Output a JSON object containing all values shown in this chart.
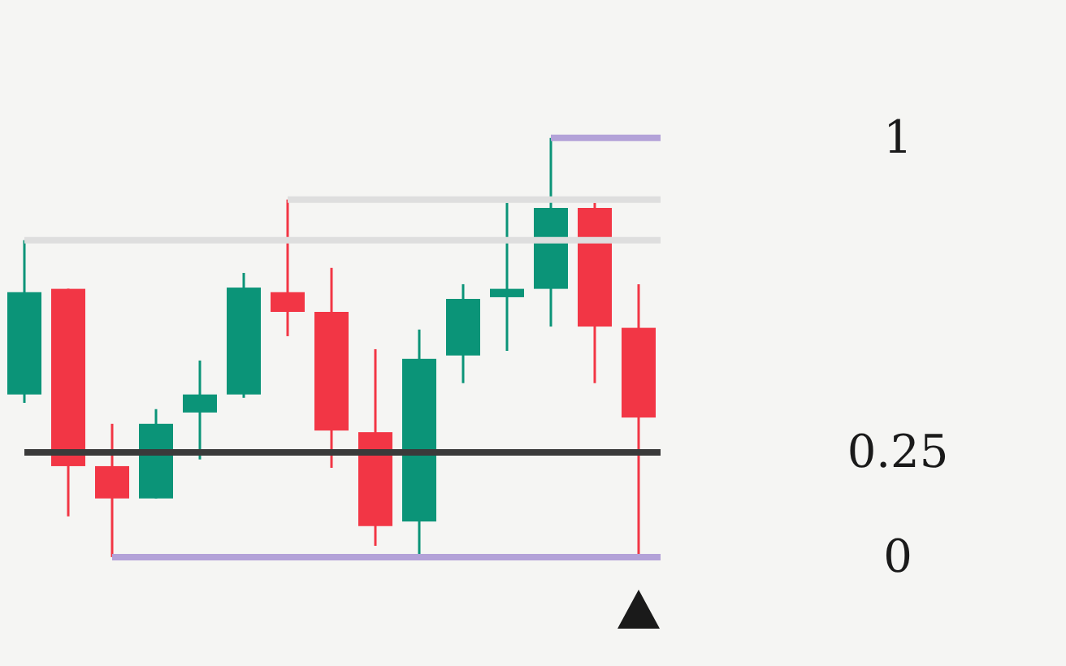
{
  "chart_data": {
    "type": "candlestick",
    "categories": [
      null,
      null,
      null,
      null,
      null,
      null,
      null,
      null,
      null,
      null,
      null,
      null,
      null,
      null,
      null
    ],
    "ohlc": [
      [
        0.388,
        0.756,
        0.368,
        0.632
      ],
      [
        0.64,
        0.64,
        0.097,
        0.217
      ],
      [
        0.217,
        0.318,
        0,
        0.14
      ],
      [
        0.14,
        0.353,
        0.14,
        0.318
      ],
      [
        0.345,
        0.469,
        0.233,
        0.388
      ],
      [
        0.388,
        0.678,
        0.38,
        0.643
      ],
      [
        0.632,
        0.853,
        0.527,
        0.585
      ],
      [
        0.585,
        0.69,
        0.213,
        0.302
      ],
      [
        0.298,
        0.496,
        0.027,
        0.074
      ],
      [
        0.085,
        0.543,
        0,
        0.473
      ],
      [
        0.481,
        0.651,
        0.415,
        0.616
      ],
      [
        0.62,
        0.845,
        0.492,
        0.64
      ],
      [
        0.64,
        1,
        0.55,
        0.833
      ],
      [
        0.833,
        0.845,
        0.415,
        0.55
      ],
      [
        0.547,
        0.651,
        0,
        0.333
      ]
    ],
    "colors": [
      "#0b9478",
      "#f23645",
      "#f23645",
      "#0b9478",
      "#0b9478",
      "#0b9478",
      "#f23645",
      "#f23645",
      "#f23645",
      "#0b9478",
      "#0b9478",
      "#0b9478",
      "#0b9478",
      "#f23645",
      "#f23645"
    ],
    "ylim": [
      0,
      1
    ],
    "yticks": [
      0,
      0.25,
      1
    ],
    "tick_labels": "y",
    "ref_lines": [
      {
        "axis": "y",
        "value": 0,
        "color": "#b3a2d8"
      },
      {
        "axis": "y",
        "value": 0.25,
        "color": "#3a3a3a"
      },
      {
        "axis": "y",
        "value": 1,
        "color": "#b3a2d8"
      },
      {
        "axis": "y",
        "value": 0.756,
        "color": "#dedede"
      },
      {
        "axis": "y",
        "value": 0.853,
        "color": "#dedede"
      }
    ]
  }
}
